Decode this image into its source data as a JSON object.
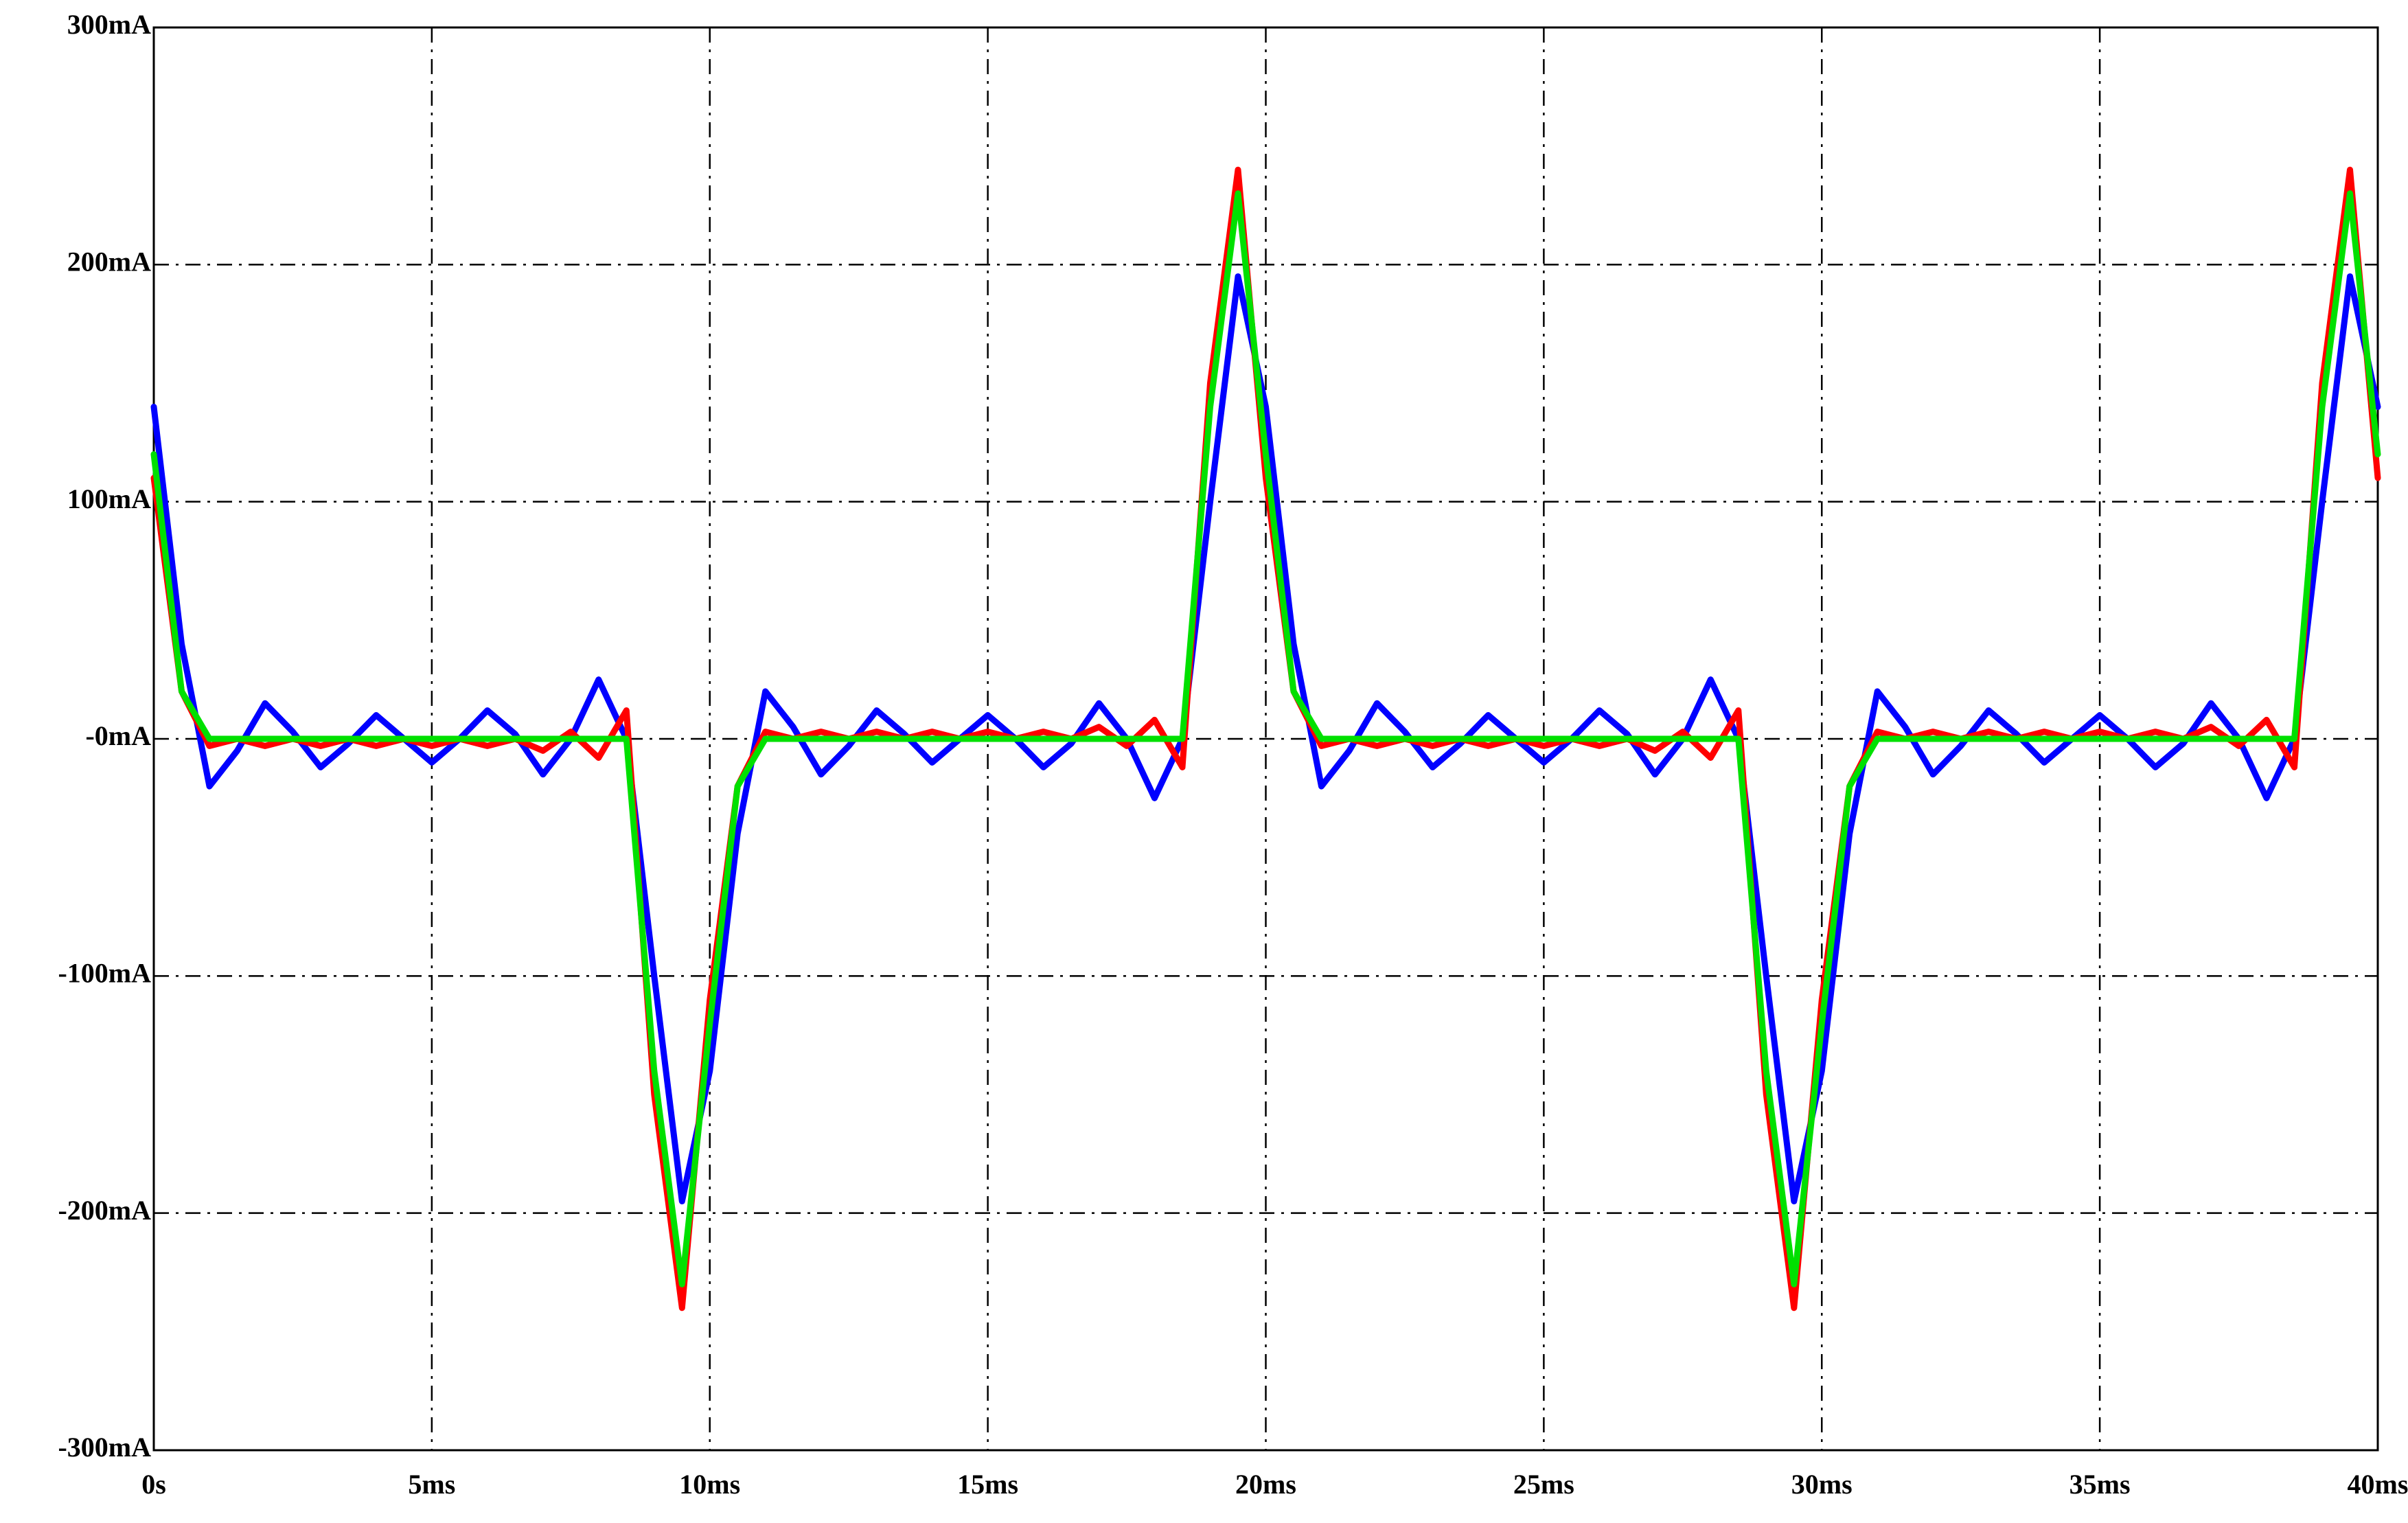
{
  "chart_data": {
    "type": "line",
    "x": [
      0,
      0.5,
      1,
      1.5,
      2,
      2.5,
      3,
      3.5,
      4,
      4.5,
      5,
      5.5,
      6,
      6.5,
      7,
      7.5,
      8,
      8.5,
      9,
      9.5,
      10,
      10.5,
      11,
      11.5,
      12,
      12.5,
      13,
      13.5,
      14,
      14.5,
      15,
      15.5,
      16,
      16.5,
      17,
      17.5,
      18,
      18.5,
      19,
      19.5,
      20,
      20.5,
      21,
      21.5,
      22,
      22.5,
      23,
      23.5,
      24,
      24.5,
      25,
      25.5,
      26,
      26.5,
      27,
      27.5,
      28,
      28.5,
      29,
      29.5,
      30,
      30.5,
      31,
      31.5,
      32,
      32.5,
      33,
      33.5,
      34,
      34.5,
      35,
      35.5,
      36,
      36.5,
      37,
      37.5,
      38,
      38.5,
      39,
      39.5,
      40
    ],
    "series": [
      {
        "color": "#0000ff",
        "values": [
          140,
          40,
          -20,
          -5,
          15,
          3,
          -12,
          -2,
          10,
          0,
          -10,
          0,
          12,
          2,
          -15,
          0,
          25,
          0,
          -100,
          -195,
          -140,
          -40,
          20,
          5,
          -15,
          -3,
          12,
          2,
          -10,
          0,
          10,
          0,
          -12,
          -2,
          15,
          0,
          -25,
          0,
          100,
          195,
          140,
          40,
          -20,
          -5,
          15,
          3,
          -12,
          -2,
          10,
          0,
          -10,
          0,
          12,
          2,
          -15,
          0,
          25,
          0,
          -100,
          -195,
          -140,
          -40,
          20,
          5,
          -15,
          -3,
          12,
          2,
          -10,
          0,
          10,
          0,
          -12,
          -2,
          15,
          0,
          -25,
          0,
          100,
          195,
          140
        ]
      },
      {
        "color": "#ff0000",
        "values": [
          110,
          20,
          -3,
          0,
          -3,
          0,
          -3,
          0,
          -3,
          0,
          -3,
          0,
          -3,
          0,
          -5,
          3,
          -8,
          12,
          -150,
          -240,
          -110,
          -20,
          3,
          0,
          3,
          0,
          3,
          0,
          3,
          0,
          3,
          0,
          3,
          0,
          5,
          -3,
          8,
          -12,
          150,
          240,
          110,
          20,
          -3,
          0,
          -3,
          0,
          -3,
          0,
          -3,
          0,
          -3,
          0,
          -3,
          0,
          -5,
          3,
          -8,
          12,
          -150,
          -240,
          -110,
          -20,
          3,
          0,
          3,
          0,
          3,
          0,
          3,
          0,
          3,
          0,
          3,
          0,
          5,
          -3,
          8,
          -12,
          150,
          240,
          110
        ]
      },
      {
        "color": "#00e000",
        "values": [
          120,
          20,
          0,
          0,
          0,
          0,
          0,
          0,
          0,
          0,
          0,
          0,
          0,
          0,
          0,
          0,
          0,
          0,
          -140,
          -230,
          -120,
          -20,
          0,
          0,
          0,
          0,
          0,
          0,
          0,
          0,
          0,
          0,
          0,
          0,
          0,
          0,
          0,
          0,
          140,
          230,
          120,
          20,
          0,
          0,
          0,
          0,
          0,
          0,
          0,
          0,
          0,
          0,
          0,
          0,
          0,
          0,
          0,
          0,
          -140,
          -230,
          -120,
          -20,
          0,
          0,
          0,
          0,
          0,
          0,
          0,
          0,
          0,
          0,
          0,
          0,
          0,
          0,
          0,
          0,
          140,
          230,
          120
        ]
      }
    ],
    "xlim": [
      0,
      40
    ],
    "xticks": [
      {
        "value": 0,
        "label": "0s"
      },
      {
        "value": 5,
        "label": "5ms"
      },
      {
        "value": 10,
        "label": "10ms"
      },
      {
        "value": 15,
        "label": "15ms"
      },
      {
        "value": 20,
        "label": "20ms"
      },
      {
        "value": 25,
        "label": "25ms"
      },
      {
        "value": 30,
        "label": "30ms"
      },
      {
        "value": 35,
        "label": "35ms"
      },
      {
        "value": 40,
        "label": "40ms"
      }
    ],
    "ylim": [
      -300,
      300
    ],
    "yticks": [
      {
        "value": -300,
        "label": "-300mA"
      },
      {
        "value": -200,
        "label": "-200mA"
      },
      {
        "value": -100,
        "label": "-100mA"
      },
      {
        "value": 0,
        "label": "-0mA"
      },
      {
        "value": 100,
        "label": "100mA"
      },
      {
        "value": 200,
        "label": "200mA"
      },
      {
        "value": 300,
        "label": "300mA"
      }
    ],
    "grid": true
  }
}
